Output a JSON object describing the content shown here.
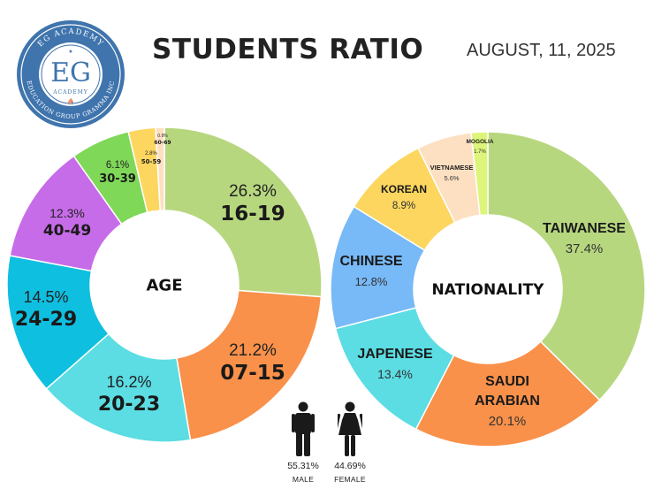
{
  "title": "STUDENTS RATIO",
  "date": "AUGUST, 11, 2025",
  "logo": {
    "top_text": "EG ACADEMY",
    "initials": "EG",
    "inner_text": "ACADEMY",
    "bottom_text": "EDUCATION GROUP GRAMMA INC"
  },
  "chart_data": [
    {
      "type": "pie",
      "center_label": "AGE",
      "slices": [
        {
          "label": "16-19",
          "value": 26.3,
          "pct": "26.3%",
          "color": "#b7d77f"
        },
        {
          "label": "07-15",
          "value": 21.2,
          "pct": "21.2%",
          "color": "#f9914a"
        },
        {
          "label": "20-23",
          "value": 16.2,
          "pct": "16.2%",
          "color": "#5bdde3"
        },
        {
          "label": "24-29",
          "value": 14.5,
          "pct": "14.5%",
          "color": "#0fbfe0"
        },
        {
          "label": "40-49",
          "value": 12.3,
          "pct": "12.3%",
          "color": "#c76ce8"
        },
        {
          "label": "30-39",
          "value": 6.1,
          "pct": "6.1%",
          "color": "#7fd858"
        },
        {
          "label": "50-59",
          "value": 2.8,
          "pct": "2.8%",
          "color": "#fcd65f"
        },
        {
          "label": "60-69",
          "value": 0.9,
          "pct": "0.9%",
          "color": "#fde0c2"
        }
      ]
    },
    {
      "type": "pie",
      "center_label": "NATIONALITY",
      "slices": [
        {
          "label": "TAIWANESE",
          "value": 37.4,
          "pct": "37.4%",
          "color": "#b7d77f"
        },
        {
          "label": "SAUDI ARABIAN",
          "value": 20.1,
          "pct": "20.1%",
          "color": "#f9914a"
        },
        {
          "label": "JAPENESE",
          "value": 13.4,
          "pct": "13.4%",
          "color": "#5bdde3"
        },
        {
          "label": "CHINESE",
          "value": 12.8,
          "pct": "12.8%",
          "color": "#78b9f7"
        },
        {
          "label": "KOREAN",
          "value": 8.9,
          "pct": "8.9%",
          "color": "#fcd65f"
        },
        {
          "label": "VIETNAMESE",
          "value": 5.6,
          "pct": "5.6%",
          "color": "#fde0c2"
        },
        {
          "label": "MOGOLIA",
          "value": 1.7,
          "pct": "1.7%",
          "color": "#dcf57a"
        }
      ]
    }
  ],
  "gender": {
    "male": {
      "pct": "55.31%",
      "label": "MALE",
      "icon": "male-person-icon"
    },
    "female": {
      "pct": "44.69%",
      "label": "FEMALE",
      "icon": "female-person-icon"
    }
  }
}
